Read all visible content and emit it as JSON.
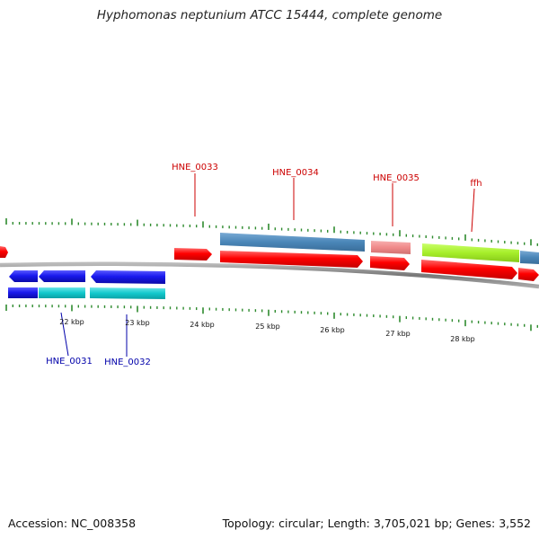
{
  "title": "Hyphomonas neptunium ATCC 15444, complete genome",
  "footer": {
    "accession": "Accession: NC_008358",
    "summary": "Topology: circular; Length: 3,705,021 bp; Genes: 3,552"
  },
  "colors": {
    "forward_gene": "#ff0000",
    "reverse_gene": "#1a1aee",
    "forward_label": "#cc0000",
    "reverse_label": "#0000aa",
    "cds_steelblue": "#4a86b8",
    "cds_salmon": "#f08a8a",
    "cds_lime": "#a6ee2a",
    "cds_cyan": "#11c8cc",
    "tick": "#2e8b2e",
    "backbone": "#888888"
  },
  "scale_labels": [
    "22 kbp",
    "23 kbp",
    "24 kbp",
    "25 kbp",
    "26 kbp",
    "27 kbp",
    "28 kbp"
  ],
  "gene_labels": {
    "forward": [
      "HNE_0033",
      "HNE_0034",
      "HNE_0035",
      "ffh"
    ],
    "reverse": [
      "HNE_0031",
      "HNE_0032"
    ]
  }
}
